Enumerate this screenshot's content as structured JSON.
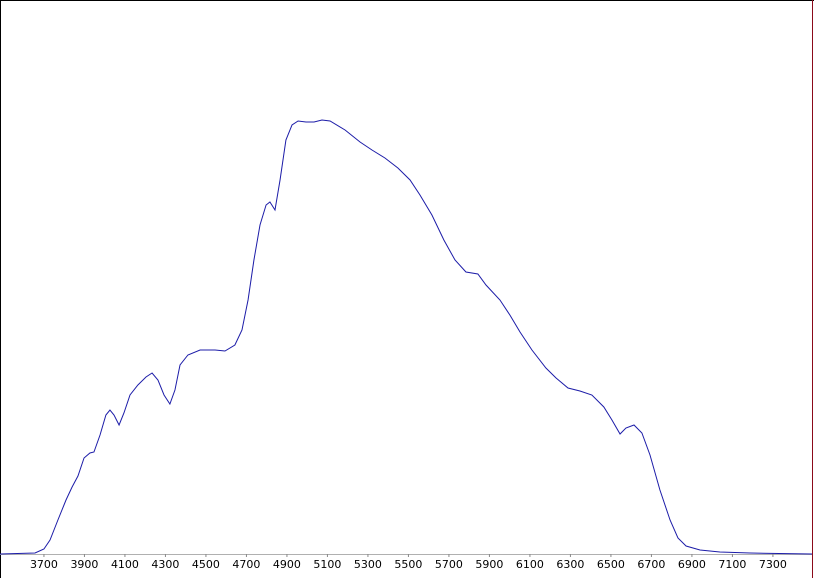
{
  "chart_data": {
    "type": "line",
    "x": [
      3483,
      3656,
      3700,
      3730,
      3769,
      3809,
      3839,
      3868,
      3898,
      3927,
      3947,
      3977,
      4006,
      4026,
      4046,
      4071,
      4095,
      4125,
      4164,
      4204,
      4234,
      4263,
      4293,
      4322,
      4347,
      4372,
      4411,
      4471,
      4545,
      4594,
      4643,
      4678,
      4708,
      4737,
      4767,
      4797,
      4816,
      4841,
      4866,
      4895,
      4925,
      4955,
      4994,
      5034,
      5073,
      5113,
      5187,
      5261,
      5320,
      5384,
      5448,
      5508,
      5557,
      5616,
      5675,
      5730,
      5784,
      5843,
      5883,
      5952,
      6001,
      6051,
      6110,
      6179,
      6229,
      6288,
      6347,
      6406,
      6465,
      6505,
      6545,
      6574,
      6614,
      6653,
      6693,
      6742,
      6792,
      6831,
      6871,
      6940,
      7038,
      7187,
      7493
    ],
    "series": [
      {
        "color": "#1c1ca8",
        "values": [
          0,
          1,
          5,
          14,
          34,
          54,
          67,
          78,
          96,
          101,
          102,
          119,
          139,
          144,
          139,
          129,
          141,
          159,
          169,
          177,
          181,
          174,
          159,
          150,
          164,
          189,
          199,
          204,
          204,
          203,
          209,
          224,
          254,
          294,
          329,
          349,
          352,
          344,
          374,
          414,
          429,
          433,
          432,
          432,
          434,
          433,
          424,
          412,
          404,
          396,
          386,
          374,
          359,
          339,
          314,
          294,
          282,
          280,
          269,
          254,
          239,
          222,
          204,
          186,
          176,
          166,
          163,
          159,
          147,
          134,
          120,
          126,
          129,
          121,
          99,
          64,
          34,
          16,
          8,
          4,
          2,
          1,
          0
        ]
      }
    ],
    "xlim": [
      3483,
      7493
    ],
    "ylim": [
      0,
      552
    ],
    "xticks": [
      3700,
      3900,
      4100,
      4300,
      4500,
      4700,
      4900,
      5100,
      5300,
      5500,
      5700,
      5900,
      6100,
      6300,
      6500,
      6700,
      6900,
      7100,
      7300
    ]
  }
}
